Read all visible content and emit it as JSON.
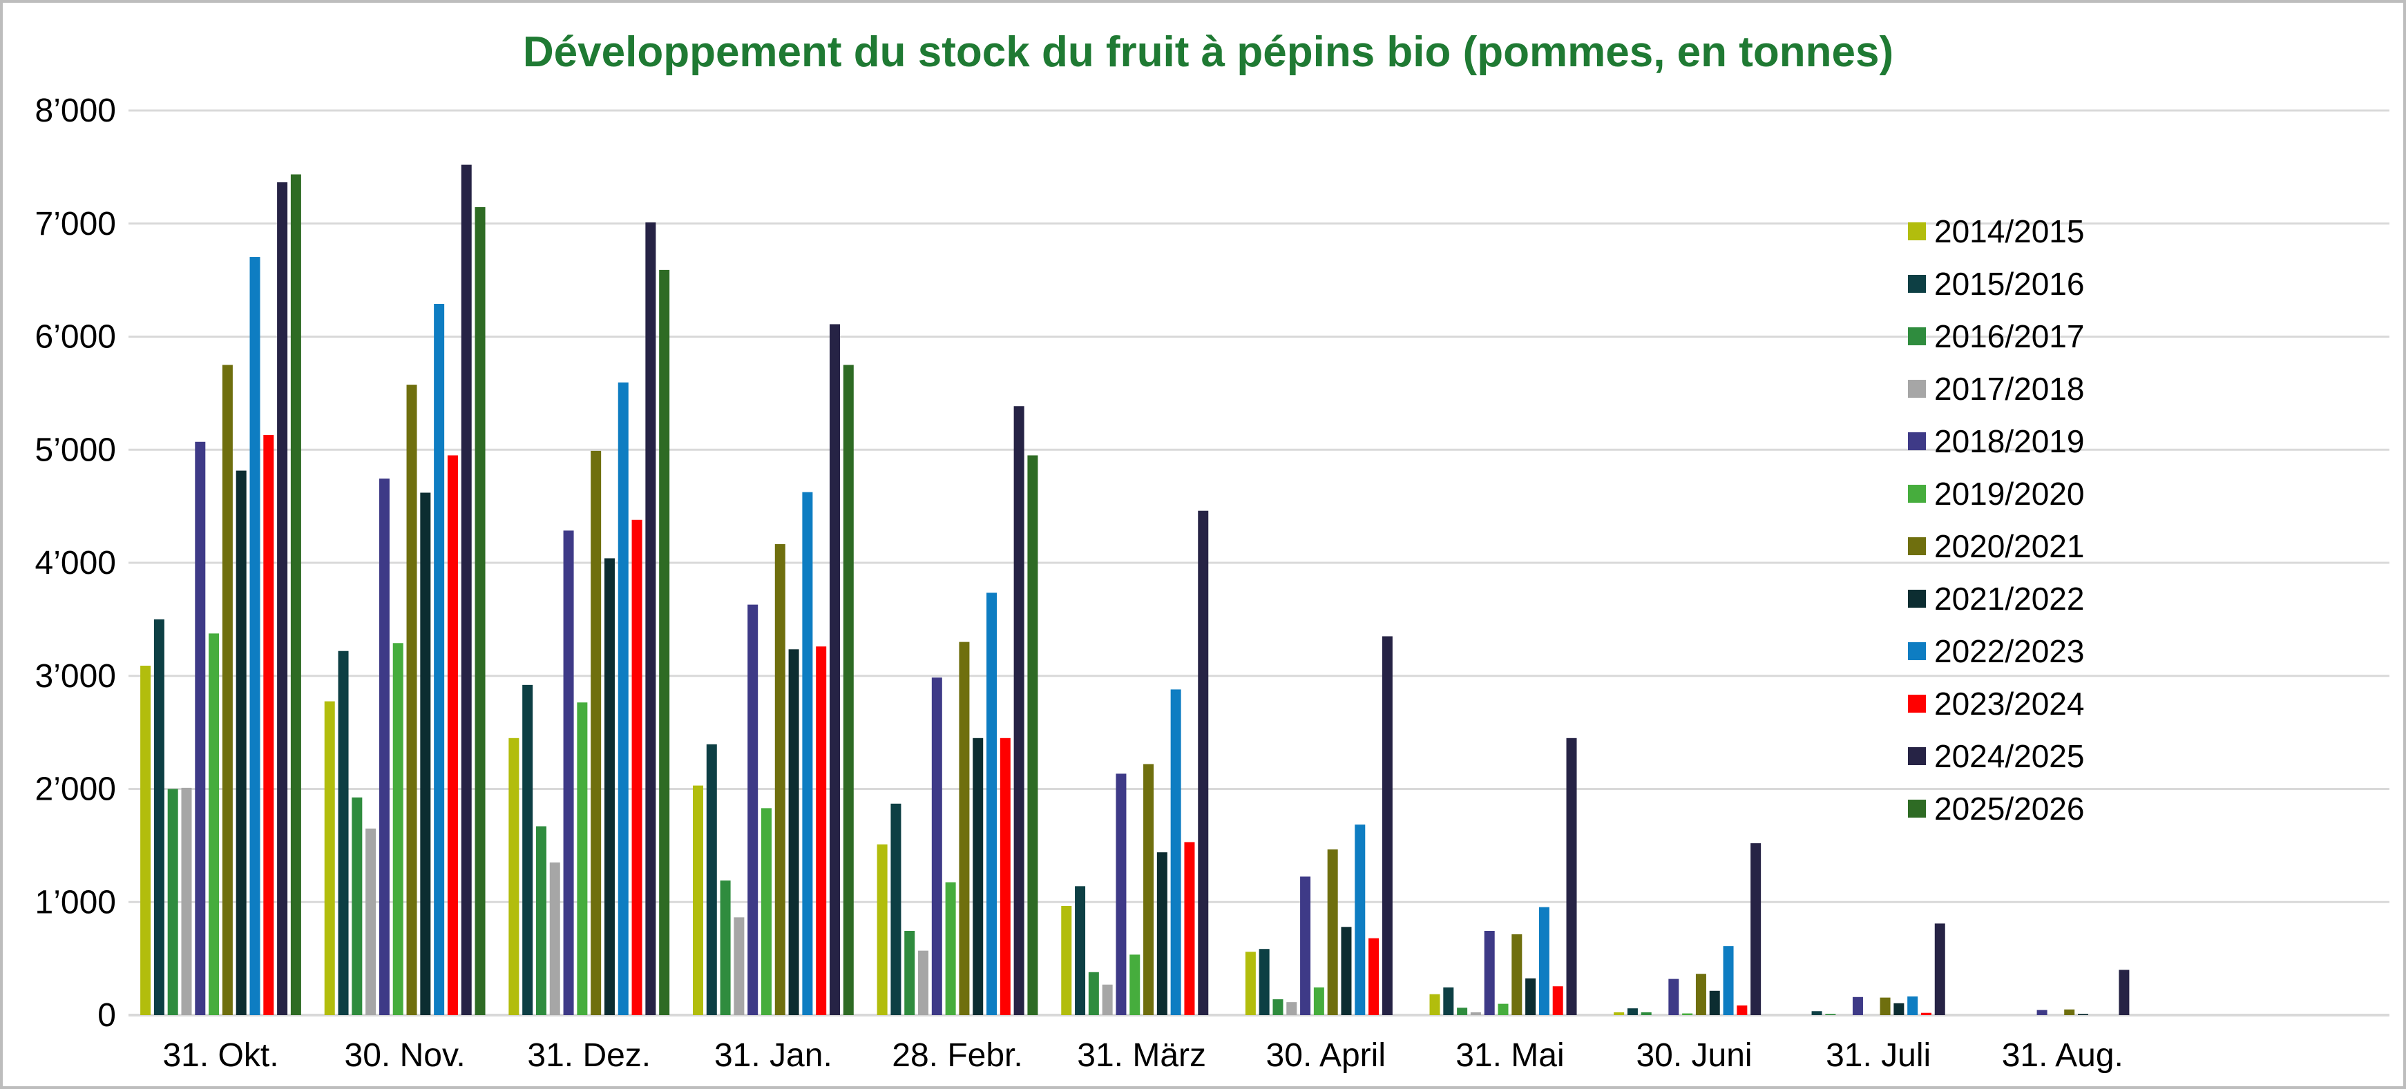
{
  "title": {
    "text": "Développement du stock du fruit à pépins bio (pommes, en tonnes)",
    "color": "#1f7a33"
  },
  "chart_data": {
    "type": "bar",
    "title": "Développement du stock du fruit à pépins bio (pommes, en tonnes)",
    "xlabel": "",
    "ylabel": "",
    "ylim": [
      0,
      8000
    ],
    "grid": true,
    "legend_position": "right",
    "y_ticks": [
      "0",
      "1’000",
      "2’000",
      "3’000",
      "4’000",
      "5’000",
      "6’000",
      "7’000",
      "8’000"
    ],
    "categories": [
      "31. Okt.",
      "30. Nov.",
      "31. Dez.",
      "31. Jan.",
      "28. Febr.",
      "31. März",
      "30. April",
      "31. Mai",
      "30. Juni",
      "31. Juli",
      "31. Aug."
    ],
    "series": [
      {
        "name": "2014/2015",
        "color": "#b2bd0d",
        "values": [
          3090,
          2775,
          2450,
          2030,
          1510,
          965,
          560,
          185,
          25,
          0,
          0
        ]
      },
      {
        "name": "2015/2016",
        "color": "#0d3f44",
        "values": [
          3500,
          3220,
          2920,
          2395,
          1870,
          1140,
          585,
          245,
          60,
          35,
          0
        ]
      },
      {
        "name": "2016/2017",
        "color": "#2f8c3e",
        "values": [
          2000,
          1925,
          1670,
          1190,
          745,
          380,
          140,
          65,
          25,
          10,
          0
        ]
      },
      {
        "name": "2017/2018",
        "color": "#a6a6a6",
        "values": [
          2010,
          1650,
          1350,
          865,
          570,
          270,
          115,
          25,
          0,
          0,
          0
        ]
      },
      {
        "name": "2018/2019",
        "color": "#3e3a87",
        "values": [
          5070,
          4745,
          4285,
          3630,
          2985,
          2135,
          1225,
          745,
          320,
          160,
          45
        ]
      },
      {
        "name": "2019/2020",
        "color": "#46ad3d",
        "values": [
          3375,
          3290,
          2765,
          1830,
          1175,
          535,
          245,
          100,
          15,
          0,
          0
        ]
      },
      {
        "name": "2020/2021",
        "color": "#6f6f0e",
        "values": [
          5750,
          5575,
          4990,
          4165,
          3300,
          2220,
          1465,
          715,
          365,
          155,
          50
        ]
      },
      {
        "name": "2021/2022",
        "color": "#0c2d31",
        "values": [
          4815,
          4620,
          4040,
          3235,
          2450,
          1440,
          780,
          325,
          215,
          105,
          10
        ]
      },
      {
        "name": "2022/2023",
        "color": "#0e7dc2",
        "values": [
          6705,
          6290,
          5595,
          4625,
          3735,
          2880,
          1685,
          955,
          610,
          165,
          0
        ]
      },
      {
        "name": "2023/2024",
        "color": "#ff0000",
        "values": [
          5130,
          4950,
          4380,
          3260,
          2450,
          1530,
          680,
          255,
          85,
          20,
          0
        ]
      },
      {
        "name": "2024/2025",
        "color": "#262345",
        "values": [
          7365,
          7520,
          7010,
          6110,
          5385,
          4460,
          3350,
          2450,
          1520,
          810,
          400
        ]
      },
      {
        "name": "2025/2026",
        "color": "#2e6b24",
        "values": [
          7435,
          7145,
          6590,
          5750,
          4950,
          0,
          0,
          0,
          0,
          0,
          0
        ]
      }
    ]
  }
}
